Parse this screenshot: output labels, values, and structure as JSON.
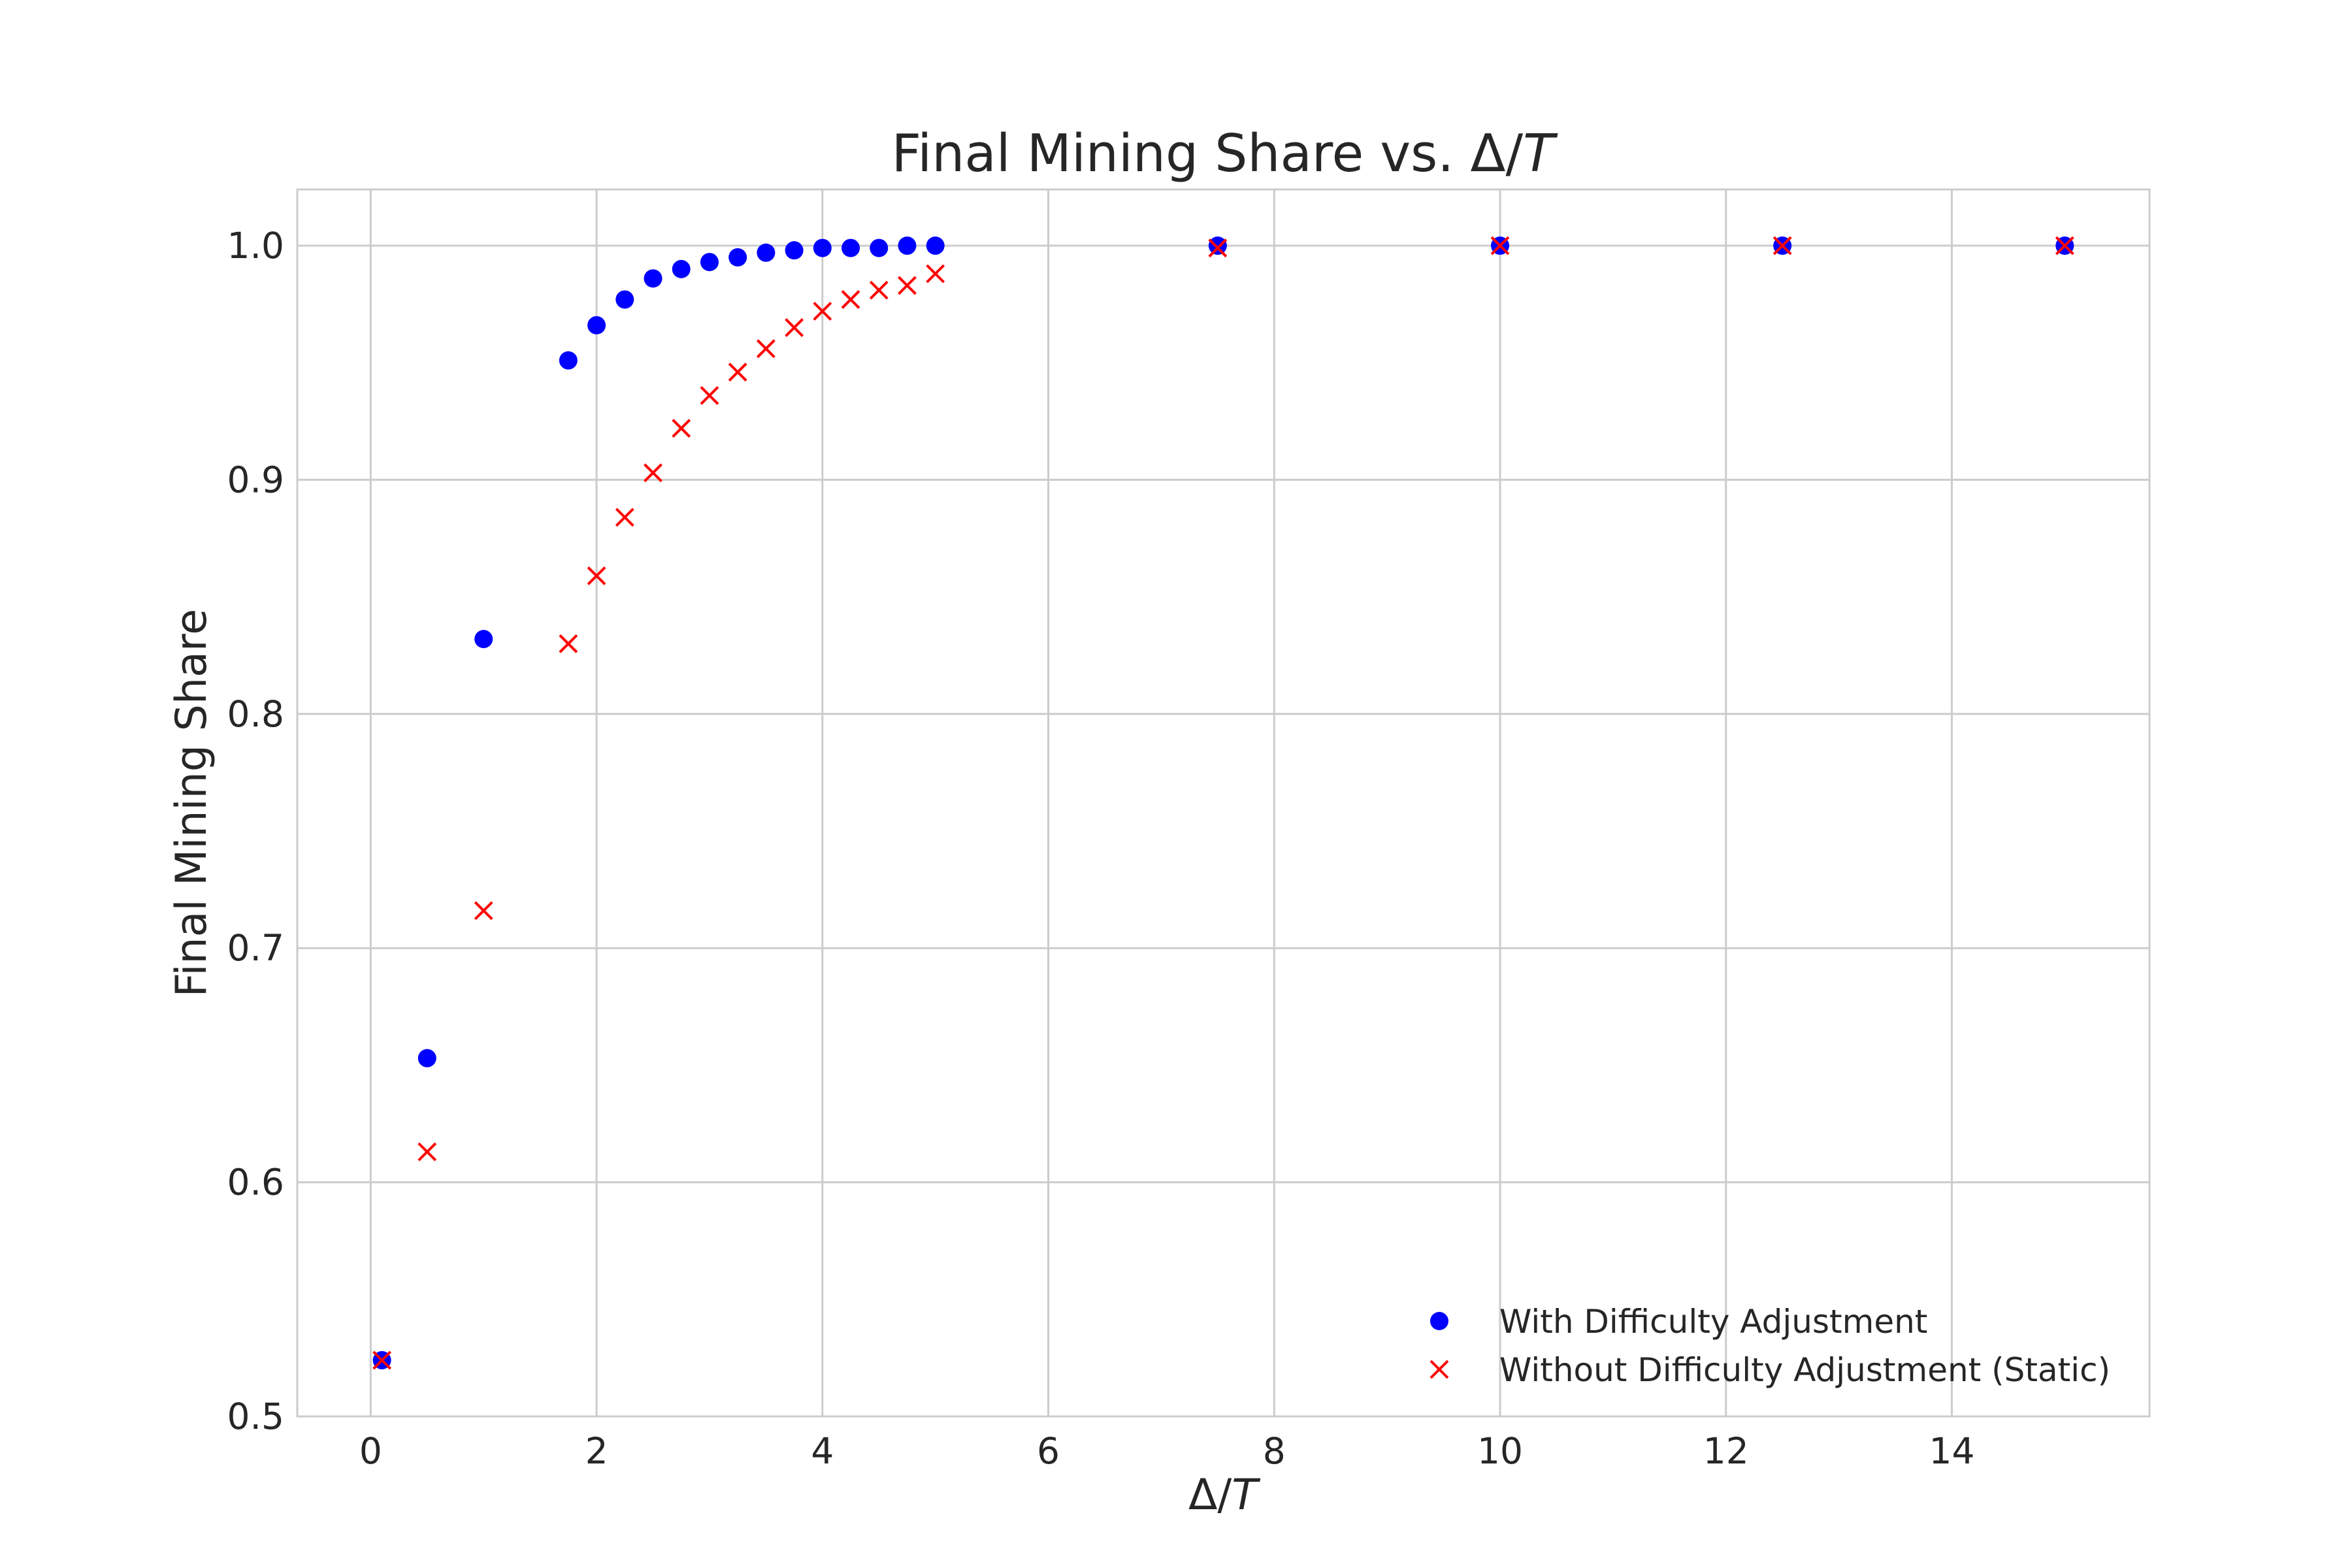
{
  "chart_data": {
    "type": "scatter",
    "title": "Final Mining Share vs. Δ/T",
    "title_prefix": "Final Mining Share vs. Δ/",
    "title_italic": "T",
    "xlabel": "Δ/T",
    "xlabel_prefix": "Δ/",
    "xlabel_italic": "T",
    "ylabel": "Final Mining Share",
    "xlim": [
      -0.65,
      15.75
    ],
    "ylim": [
      0.5,
      1.024
    ],
    "x_ticks": [
      0,
      2,
      4,
      6,
      8,
      10,
      12,
      14
    ],
    "x_tick_labels": [
      "0",
      "2",
      "4",
      "6",
      "8",
      "10",
      "12",
      "14"
    ],
    "y_ticks": [
      0.5,
      0.6,
      0.7,
      0.8,
      0.9,
      1.0
    ],
    "y_tick_labels": [
      "0.5",
      "0.6",
      "0.7",
      "0.8",
      "0.9",
      "1.0"
    ],
    "grid": true,
    "legend_position": "lower-right",
    "series": [
      {
        "name": "With Difficulty Adjustment",
        "marker": "circle",
        "color": "#0000ff",
        "x": [
          0.1,
          0.5,
          1.0,
          1.75,
          2.0,
          2.25,
          2.5,
          2.75,
          3.0,
          3.25,
          3.5,
          3.75,
          4.0,
          4.25,
          4.5,
          4.75,
          5.0,
          7.5,
          10.0,
          12.5,
          15.0
        ],
        "y": [
          0.524,
          0.653,
          0.832,
          0.951,
          0.966,
          0.977,
          0.986,
          0.99,
          0.993,
          0.995,
          0.997,
          0.998,
          0.999,
          0.999,
          0.999,
          1.0,
          1.0,
          1.0,
          1.0,
          1.0,
          1.0
        ]
      },
      {
        "name": "Without Difficulty Adjustment (Static)",
        "marker": "x",
        "color": "#ff0000",
        "x": [
          0.1,
          0.5,
          1.0,
          1.75,
          2.0,
          2.25,
          2.5,
          2.75,
          3.0,
          3.25,
          3.5,
          3.75,
          4.0,
          4.25,
          4.5,
          4.75,
          5.0,
          7.5,
          10.0,
          12.5,
          15.0
        ],
        "y": [
          0.524,
          0.613,
          0.716,
          0.83,
          0.859,
          0.884,
          0.903,
          0.922,
          0.936,
          0.946,
          0.956,
          0.965,
          0.972,
          0.977,
          0.981,
          0.983,
          0.988,
          0.999,
          1.0,
          1.0,
          1.0
        ]
      }
    ]
  }
}
